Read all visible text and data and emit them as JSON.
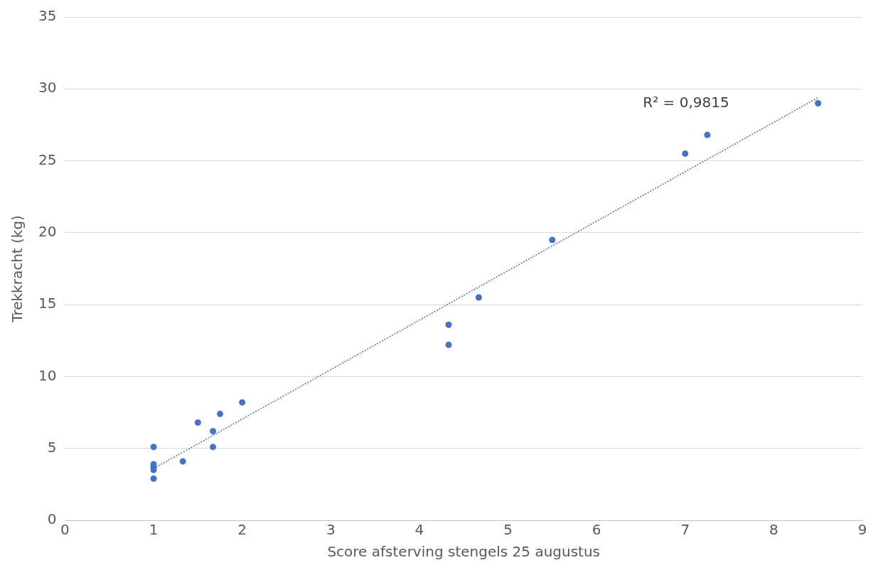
{
  "chart_data": {
    "type": "scatter",
    "xlabel": "Score afsterving stengels 25 augustus",
    "ylabel": "Trekkracht (kg)",
    "xlim": [
      0,
      9
    ],
    "xticks": [
      0,
      1,
      2,
      3,
      4,
      5,
      6,
      7,
      8,
      9
    ],
    "ylim": [
      0,
      35
    ],
    "yticks": [
      0,
      5,
      10,
      15,
      20,
      25,
      30,
      35
    ],
    "grid": "y",
    "legend": false,
    "marker": "circle",
    "series": [
      {
        "color": "#4472c4",
        "x": [
          1,
          1,
          1,
          1,
          1,
          1.33,
          1.5,
          1.67,
          1.67,
          1.75,
          2,
          4.33,
          4.33,
          4.67,
          5.5,
          7,
          7.25,
          8.5
        ],
        "values": [
          5.1,
          3.9,
          3.7,
          3.5,
          2.9,
          4.1,
          6.8,
          6.2,
          5.1,
          7.4,
          8.2,
          13.6,
          12.2,
          15.5,
          19.5,
          25.5,
          26.8,
          29.0
        ]
      },
      {
        "type": "line",
        "color": "#4472c4",
        "line_style": "dotted",
        "marker": "none",
        "x": [
          1,
          8.5
        ],
        "values": [
          3.6,
          29.4
        ]
      }
    ],
    "annotations": [
      "R² = 0,9815"
    ]
  }
}
